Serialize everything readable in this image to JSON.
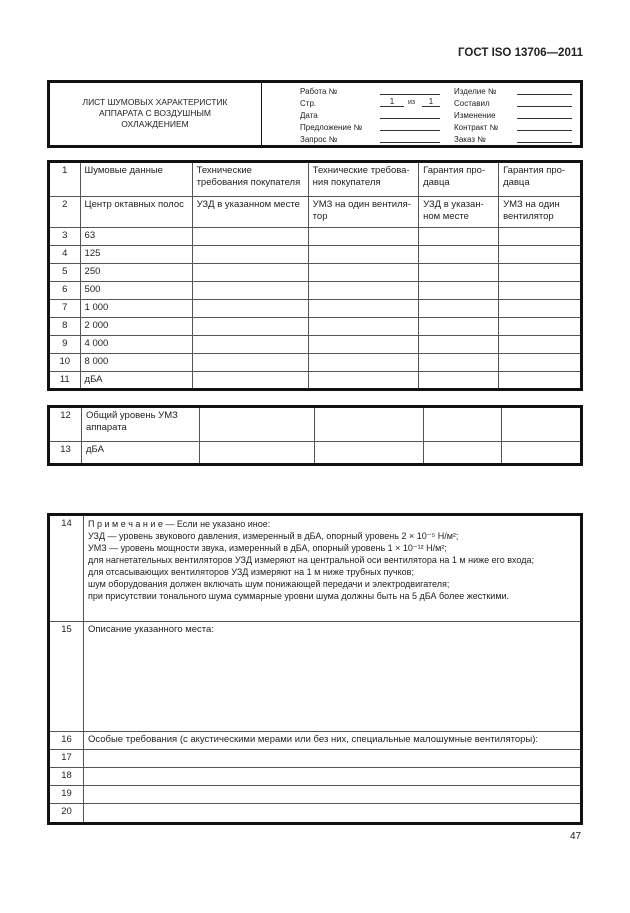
{
  "doc_code": "ГОСТ ISO 13706—2011",
  "header": {
    "title_lines": [
      "ЛИСТ ШУМОВЫХ ХАРАКТЕРИСТИК",
      "АППАРАТА С ВОЗДУШНЫМ",
      "ОХЛАЖДЕНИЕМ"
    ],
    "left_fields": [
      "Работа №",
      "Стр.",
      "Дата",
      "Предложение №",
      "Запрос №"
    ],
    "page_no": "1",
    "page_of": "из",
    "page_total": "1",
    "right_fields": [
      "Изделие №",
      "Составил",
      "Изменение",
      "Контракт №",
      "Заказ №"
    ]
  },
  "table1": {
    "rows": [
      [
        "1",
        "Шумовые данные",
        "Технические требования покупателя",
        "Технические требова-ния покупателя",
        "Гарантия про-давца",
        "Гарантия про-давца"
      ],
      [
        "2",
        "Центр октавных полос",
        "УЗД  в указанном месте",
        "УМЗ на один вентиля-тор",
        "УЗД  в указан-ном месте",
        "УМЗ  на  один вентилятор"
      ],
      [
        "3",
        "63",
        "",
        "",
        "",
        ""
      ],
      [
        "4",
        "125",
        "",
        "",
        "",
        ""
      ],
      [
        "5",
        "250",
        "",
        "",
        "",
        ""
      ],
      [
        "6",
        "500",
        "",
        "",
        "",
        ""
      ],
      [
        "7",
        "1 000",
        "",
        "",
        "",
        ""
      ],
      [
        "8",
        "2 000",
        "",
        "",
        "",
        ""
      ],
      [
        "9",
        "4 000",
        "",
        "",
        "",
        ""
      ],
      [
        "10",
        "8 000",
        "",
        "",
        "",
        ""
      ],
      [
        "11",
        "дБА",
        "",
        "",
        "",
        ""
      ]
    ]
  },
  "table2": {
    "rows": [
      [
        "12",
        "Общий уровень УМЗ аппарата",
        "",
        "",
        "",
        ""
      ],
      [
        "13",
        "дБА",
        "",
        "",
        "",
        ""
      ]
    ]
  },
  "table3": {
    "note_num": "14",
    "note_lines": [
      "П р и м е ч а н и е — Если не указано иное:",
      "УЗД — уровень звукового давления, измеренный в дБА, опорный уровень 2 × 10⁻⁵ Н/м²;",
      "УМЗ — уровень мощности звука, измеренный в дБА, опорный уровень 1 × 10⁻¹² Н/м²;",
      "для нагнетательных вентиляторов УЗД измеряют на центральной оси вентилятора на 1 м ниже его входа;",
      "для отсасывающих вентиляторов УЗД измеряют на 1 м ниже трубных пучков;",
      "шум оборудования должен включать шум понижающей передачи и электродвигателя;",
      "при присутствии тонального шума суммарные уровни шума должны быть на 5 дБА  более жесткими."
    ],
    "rows": [
      [
        "15",
        "Описание указанного места:"
      ],
      [
        "16",
        "Особые требования (с акустическими мерами или без них, специальные малошумные вентиляторы):"
      ],
      [
        "17",
        ""
      ],
      [
        "18",
        ""
      ],
      [
        "19",
        ""
      ],
      [
        "20",
        ""
      ]
    ]
  },
  "page_number": "47"
}
